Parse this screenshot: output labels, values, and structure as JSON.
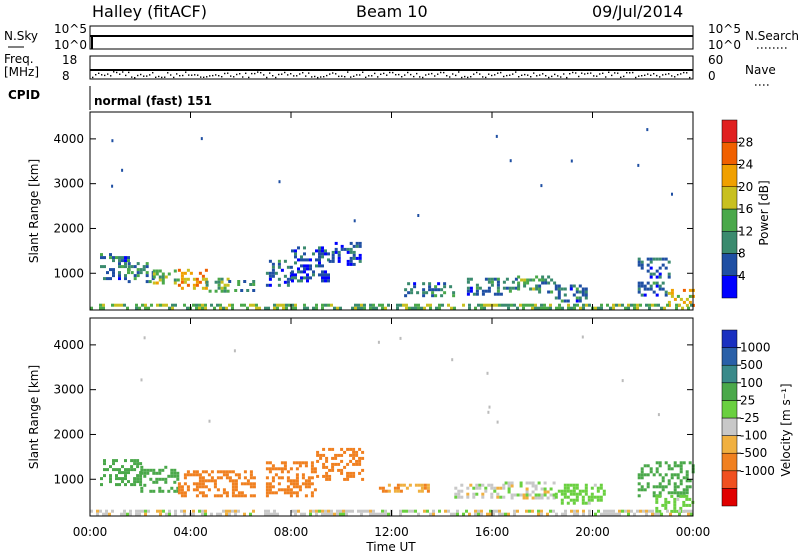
{
  "header": {
    "station": "Halley (fitACF)",
    "beam": "Beam 10",
    "date": "09/Jul/2014"
  },
  "panels": {
    "nsky": {
      "left_label": "N.Sky",
      "left_top": "10^5",
      "left_bottom": "10^0",
      "right_label": "N.Search",
      "right_top": "10^5",
      "right_bottom": "10^0"
    },
    "freq": {
      "left_label_1": "Freq.",
      "left_label_2": "[MHz]",
      "left_top": "18",
      "left_bottom": "8",
      "right_label": "Nave",
      "right_top": "60",
      "right_bottom": "0"
    },
    "cpid": {
      "label": "CPID",
      "value": "normal (fast) 151"
    }
  },
  "colors": {
    "power_scale": [
      "#0000ff",
      "#1f4fa3",
      "#3a8a6e",
      "#4aa84a",
      "#c8c020",
      "#f0a000",
      "#f06000",
      "#e02020"
    ],
    "velocity_scale": [
      "#e00000",
      "#f05020",
      "#f08020",
      "#f0b040",
      "#c8c8c8",
      "#6ad040",
      "#4aa84a",
      "#3a8a8a",
      "#2a60a8",
      "#1a30c0"
    ]
  },
  "chart_data": [
    {
      "type": "heatmap",
      "title": "",
      "xlabel": "Time UT",
      "ylabel": "Slant Range [km]",
      "xlim": [
        "00:00",
        "24:00"
      ],
      "ylim": [
        180,
        4600
      ],
      "x_ticks": [
        "00:00",
        "04:00",
        "08:00",
        "12:00",
        "16:00",
        "20:00",
        "00:00"
      ],
      "y_ticks": [
        1000,
        2000,
        3000,
        4000
      ],
      "colorbar": {
        "label": "Power [dB]",
        "ticks": [
          4,
          8,
          12,
          16,
          20,
          24,
          28
        ],
        "range": [
          0,
          30
        ]
      },
      "regions": [
        {
          "t0": 0.4,
          "t1": 1.5,
          "r0": 900,
          "r1": 1450,
          "value": 8
        },
        {
          "t0": 1.5,
          "t1": 2.5,
          "r0": 800,
          "r1": 1250,
          "value": 10
        },
        {
          "t0": 2.5,
          "t1": 3.5,
          "r0": 750,
          "r1": 1150,
          "value": 16
        },
        {
          "t0": 3.5,
          "t1": 4.6,
          "r0": 650,
          "r1": 1100,
          "value": 22
        },
        {
          "t0": 4.6,
          "t1": 5.5,
          "r0": 600,
          "r1": 900,
          "value": 14
        },
        {
          "t0": 5.5,
          "t1": 6.5,
          "r0": 600,
          "r1": 850,
          "value": 10
        },
        {
          "t0": 7.0,
          "t1": 8.0,
          "r0": 700,
          "r1": 1300,
          "value": 8
        },
        {
          "t0": 8.0,
          "t1": 9.5,
          "r0": 800,
          "r1": 1600,
          "value": 6
        },
        {
          "t0": 9.5,
          "t1": 10.7,
          "r0": 1200,
          "r1": 1700,
          "value": 6
        },
        {
          "t0": 12.5,
          "t1": 14.5,
          "r0": 500,
          "r1": 800,
          "value": 8
        },
        {
          "t0": 15.0,
          "t1": 17.0,
          "r0": 550,
          "r1": 900,
          "value": 8
        },
        {
          "t0": 17.0,
          "t1": 18.5,
          "r0": 600,
          "r1": 950,
          "value": 12
        },
        {
          "t0": 18.5,
          "t1": 19.8,
          "r0": 350,
          "r1": 750,
          "value": 8
        },
        {
          "t0": 21.8,
          "t1": 23.0,
          "r0": 500,
          "r1": 1350,
          "value": 8
        },
        {
          "t0": 23.0,
          "t1": 24.0,
          "r0": 250,
          "r1": 650,
          "value": 20
        },
        {
          "t0": 0.0,
          "t1": 24.0,
          "r0": 200,
          "r1": 320,
          "value": 14
        }
      ]
    },
    {
      "type": "heatmap",
      "title": "",
      "xlabel": "Time UT",
      "ylabel": "Slant Range [km]",
      "xlim": [
        "00:00",
        "24:00"
      ],
      "ylim": [
        180,
        4600
      ],
      "x_ticks": [
        "00:00",
        "04:00",
        "08:00",
        "12:00",
        "16:00",
        "20:00",
        "00:00"
      ],
      "y_ticks": [
        1000,
        2000,
        3000,
        4000
      ],
      "colorbar": {
        "label": "Velocity [m s⁻¹]",
        "ticks": [
          1000,
          500,
          100,
          25,
          -25,
          -100,
          -500,
          -1000
        ]
      },
      "regions": [
        {
          "t0": 0.4,
          "t1": 2.0,
          "r0": 900,
          "r1": 1450,
          "value": 300
        },
        {
          "t0": 2.0,
          "t1": 3.5,
          "r0": 750,
          "r1": 1300,
          "value": 200
        },
        {
          "t0": 3.5,
          "t1": 6.5,
          "r0": 600,
          "r1": 1200,
          "value": -200
        },
        {
          "t0": 7.0,
          "t1": 9.0,
          "r0": 650,
          "r1": 1400,
          "value": -200
        },
        {
          "t0": 9.0,
          "t1": 10.8,
          "r0": 1000,
          "r1": 1700,
          "value": -200
        },
        {
          "t0": 11.5,
          "t1": 13.5,
          "r0": 700,
          "r1": 900,
          "value": -100
        },
        {
          "t0": 14.5,
          "t1": 16.5,
          "r0": 600,
          "r1": 900,
          "value": 0
        },
        {
          "t0": 16.5,
          "t1": 18.5,
          "r0": 550,
          "r1": 950,
          "value": 0
        },
        {
          "t0": 18.5,
          "t1": 20.5,
          "r0": 450,
          "r1": 900,
          "value": 60
        },
        {
          "t0": 21.8,
          "t1": 24.0,
          "r0": 600,
          "r1": 1400,
          "value": 300
        },
        {
          "t0": 22.5,
          "t1": 24.0,
          "r0": 250,
          "r1": 650,
          "value": 60
        },
        {
          "t0": 0.0,
          "t1": 24.0,
          "r0": 200,
          "r1": 320,
          "value": 0
        }
      ]
    }
  ]
}
